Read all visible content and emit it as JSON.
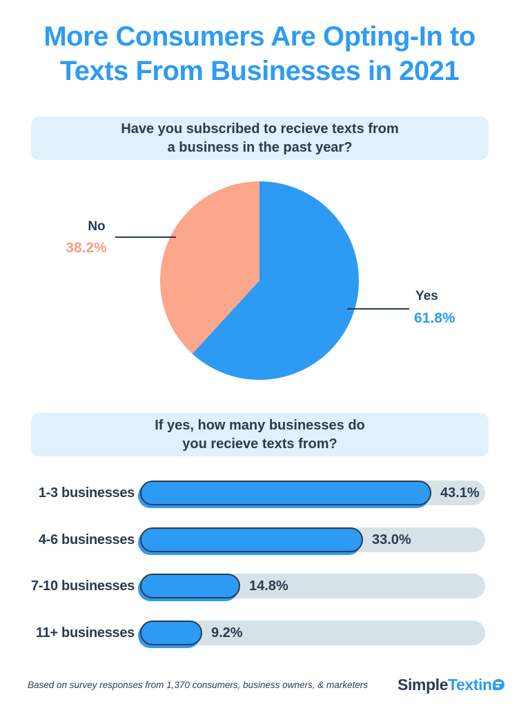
{
  "colors": {
    "blue": "#2D9BF4",
    "salmon": "#FCA78C",
    "salmon_text": "#F89E85",
    "navy": "#2B3B4D",
    "banner_bg": "#DEF1FC",
    "bar_track": "#D7E2E8",
    "background": "#FFFFFF"
  },
  "title": {
    "line1": "More Consumers Are Opting-In to",
    "line2": "Texts From Businesses in 2021"
  },
  "question1": {
    "line1": "Have you subscribed to recieve texts from",
    "line2": "a business in the past year?"
  },
  "question2": {
    "line1": "If yes, how many businesses do",
    "line2": "you recieve texts from?"
  },
  "chart_data": [
    {
      "type": "pie",
      "title": "Have you subscribed to recieve texts from a business in the past year?",
      "start_angle": "top",
      "direction": "clockwise",
      "slices": [
        {
          "label": "Yes",
          "value": 61.8,
          "display": "61.8%",
          "color": "#2D9BF4"
        },
        {
          "label": "No",
          "value": 38.2,
          "display": "38.2%",
          "color": "#FCA78C"
        }
      ]
    },
    {
      "type": "bar",
      "title": "If yes, how many businesses do you recieve texts from?",
      "orientation": "horizontal",
      "categories": [
        "1-3 businesses",
        "4-6 businesses",
        "7-10 businesses",
        "11+ businesses"
      ],
      "values": [
        43.1,
        33.0,
        14.8,
        9.2
      ],
      "value_labels": [
        "43.1%",
        "33.0%",
        "14.8%",
        "9.2%"
      ],
      "xlim": [
        0,
        51
      ],
      "bar_color": "#2D9BF4",
      "track_color": "#D7E2E8"
    }
  ],
  "footer": {
    "note": "Based on survey responses from 1,370 consumers, business owners, & marketers",
    "logo": {
      "part_dark": "Simple",
      "part_blue": "Textin",
      "bubble_icon": "speech-bubble-as-g",
      "brand": "SimpleTexting"
    }
  }
}
